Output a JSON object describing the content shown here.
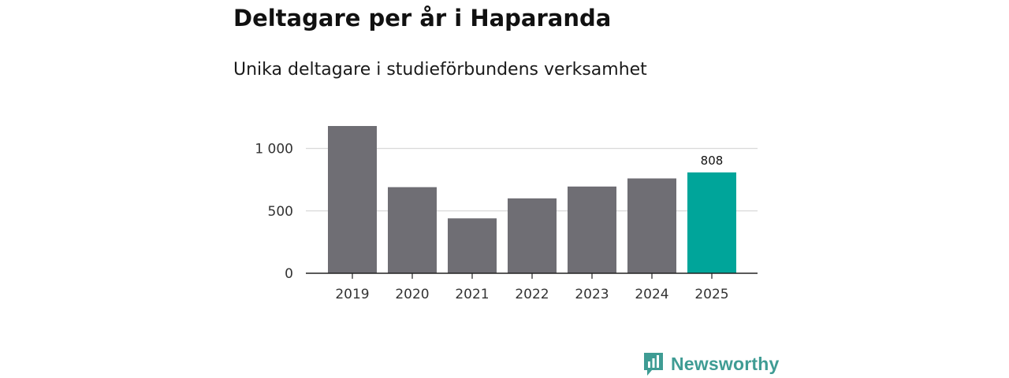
{
  "title": "Deltagare per år i Haparanda",
  "subtitle": "Unika deltagare i studieförbundens verksamhet",
  "brand": {
    "name": "Newsworthy",
    "icon": "newsworthy-logo-icon",
    "color": "#3f9c94"
  },
  "chart_data": {
    "type": "bar",
    "title": "Deltagare per år i Haparanda",
    "subtitle": "Unika deltagare i studieförbundens verksamhet",
    "xlabel": "",
    "ylabel": "",
    "categories": [
      "2019",
      "2020",
      "2021",
      "2022",
      "2023",
      "2024",
      "2025"
    ],
    "values": [
      1180,
      690,
      440,
      600,
      695,
      760,
      808
    ],
    "highlight_index": 6,
    "data_labels": [
      {
        "index": 6,
        "text": "808"
      }
    ],
    "yticks": [
      0,
      500,
      1000
    ],
    "ytick_labels": [
      "0",
      "500",
      "1 000"
    ],
    "ylim": [
      0,
      1180
    ],
    "grid": true,
    "legend": "none",
    "colors": {
      "bar": "#6f6e74",
      "highlight": "#00a59a",
      "grid": "#d9d9d9",
      "axis": "#222222"
    }
  }
}
